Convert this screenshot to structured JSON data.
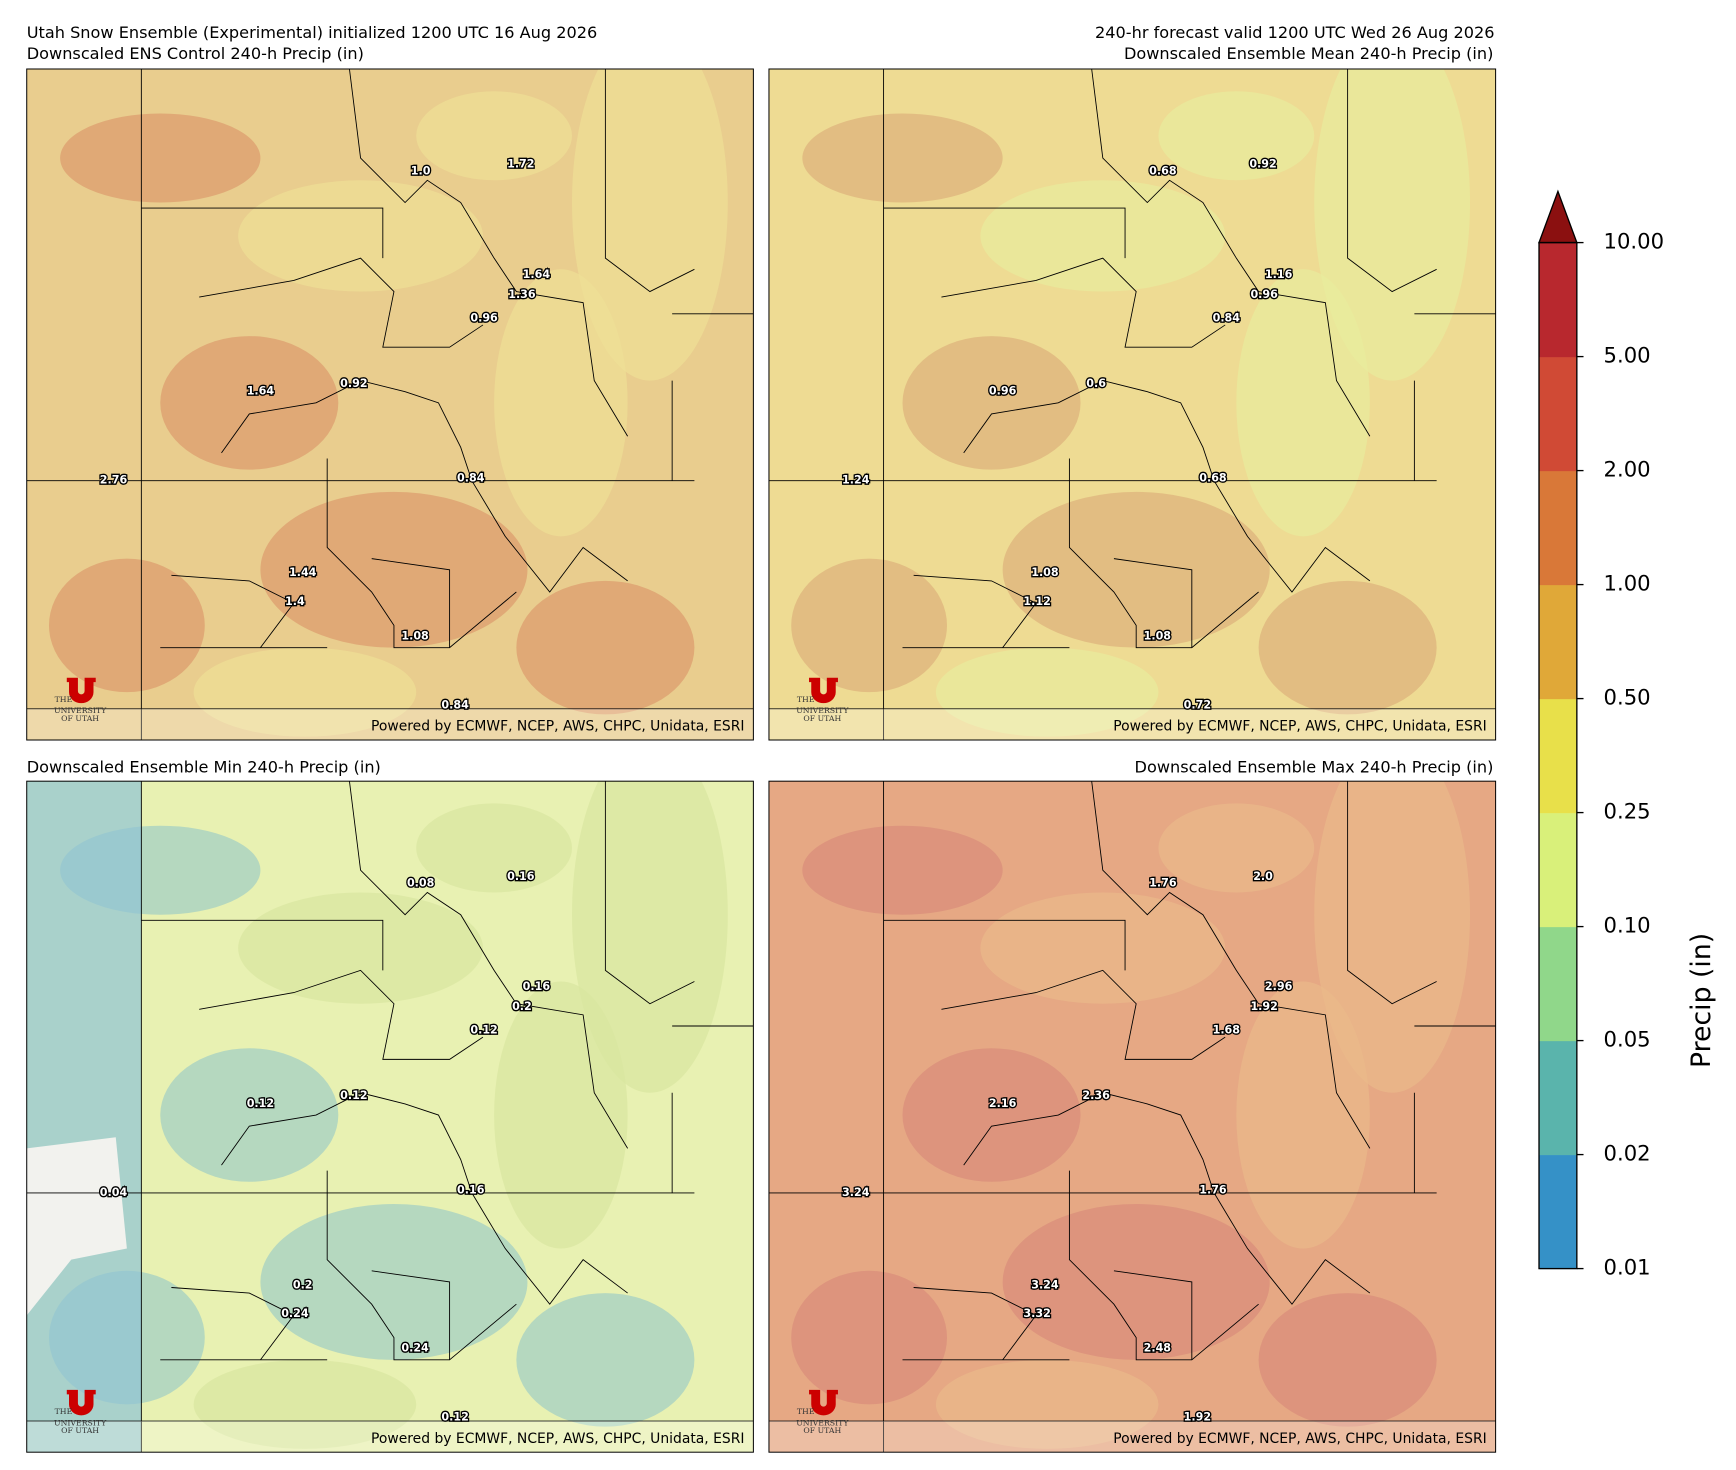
{
  "header": {
    "left": "Utah Snow Ensemble (Experimental) initialized 1200 UTC 16 Aug 2026",
    "right": "240-hr forecast valid 1200 UTC Wed 26 Aug 2026"
  },
  "credit": "Powered by ECMWF, NCEP, AWS, CHPC, Unidata, ESRI",
  "logo": [
    "THE",
    "UNIVERSITY",
    "OF UTAH"
  ],
  "panels": [
    {
      "title": "Downscaled ENS Control 240-h Precip (in)",
      "labels": [
        "1.0",
        "1.72",
        "1.64",
        "1.36",
        "0.96",
        "1.64",
        "0.92",
        "2.76",
        "0.84",
        "1.44",
        "1.4",
        "1.08",
        "0.84"
      ]
    },
    {
      "title": "Downscaled Ensemble Mean 240-h Precip (in)",
      "labels": [
        "0.68",
        "0.92",
        "1.16",
        "0.96",
        "0.84",
        "0.96",
        "0.6",
        "1.24",
        "0.68",
        "1.08",
        "1.12",
        "1.08",
        "0.72"
      ]
    },
    {
      "title": "Downscaled Ensemble Min 240-h Precip (in)",
      "labels": [
        "0.08",
        "0.16",
        "0.16",
        "0.2",
        "0.12",
        "0.12",
        "0.12",
        "0.04",
        "0.16",
        "0.2",
        "0.24",
        "0.24",
        "0.12"
      ]
    },
    {
      "title": "Downscaled Ensemble Max 240-h Precip (in)",
      "labels": [
        "1.76",
        "2.0",
        "2.96",
        "1.92",
        "1.68",
        "2.16",
        "2.36",
        "3.24",
        "1.76",
        "3.24",
        "3.32",
        "2.48",
        "1.92"
      ]
    }
  ],
  "colorbar": {
    "label": "Precip (in)",
    "levels": [
      {
        "value": 0.01,
        "label": "0.01"
      },
      {
        "value": 0.02,
        "label": "0.02"
      },
      {
        "value": 0.05,
        "label": "0.05"
      },
      {
        "value": 0.1,
        "label": "0.10"
      },
      {
        "value": 0.25,
        "label": "0.25"
      },
      {
        "value": 0.5,
        "label": "0.50"
      },
      {
        "value": 1,
        "label": "1.00"
      },
      {
        "value": 2,
        "label": "2.00"
      },
      {
        "value": 5,
        "label": "5.00"
      },
      {
        "value": 10,
        "label": "10.00"
      }
    ],
    "colors": [
      "#3591c7",
      "#5ab4ac",
      "#90d78a",
      "#d9f07a",
      "#e8e04a",
      "#e0a838",
      "#d97838",
      "#d04a35",
      "#b8282e"
    ],
    "extend_color": "#8b1010"
  }
}
